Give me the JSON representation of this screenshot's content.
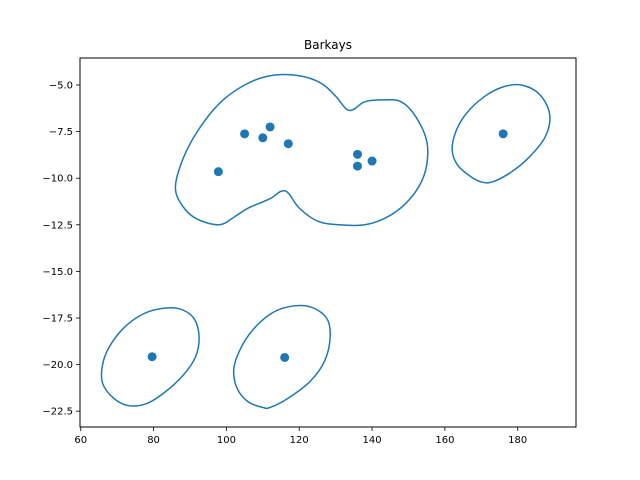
{
  "chart_data": {
    "type": "scatter",
    "title": "Barkays",
    "xlabel": "",
    "ylabel": "",
    "xlim": [
      59.8,
      196.0
    ],
    "ylim": [
      -23.35,
      -3.55
    ],
    "xticks": [
      60,
      80,
      100,
      120,
      140,
      160,
      180
    ],
    "yticks": [
      -5.0,
      -7.5,
      -10.0,
      -12.5,
      -15.0,
      -17.5,
      -20.0,
      -22.5
    ],
    "xtick_labels": [
      "60",
      "80",
      "100",
      "120",
      "140",
      "160",
      "180"
    ],
    "ytick_labels": [
      "−5.0",
      "−7.5",
      "−10.0",
      "−12.5",
      "−15.0",
      "−17.5",
      "−20.0",
      "−22.5"
    ],
    "grid": false,
    "color": "#1f77b4",
    "points": [
      {
        "x": 97.8,
        "y": -9.65
      },
      {
        "x": 105.0,
        "y": -7.62
      },
      {
        "x": 110.0,
        "y": -7.83
      },
      {
        "x": 112.0,
        "y": -7.25
      },
      {
        "x": 117.0,
        "y": -8.15
      },
      {
        "x": 136.0,
        "y": -8.72
      },
      {
        "x": 136.0,
        "y": -9.35
      },
      {
        "x": 140.0,
        "y": -9.08
      },
      {
        "x": 176.0,
        "y": -7.62
      },
      {
        "x": 79.6,
        "y": -19.58
      },
      {
        "x": 116.0,
        "y": -19.62
      }
    ],
    "contours": [
      [
        [
          98,
          -12.5
        ],
        [
          92,
          -12.2
        ],
        [
          88,
          -11.5
        ],
        [
          86,
          -10.5
        ],
        [
          88,
          -9.0
        ],
        [
          92,
          -7.5
        ],
        [
          98,
          -6.0
        ],
        [
          105,
          -5.0
        ],
        [
          112,
          -4.5
        ],
        [
          120,
          -4.5
        ],
        [
          126,
          -4.9
        ],
        [
          130,
          -5.6
        ],
        [
          133,
          -6.3
        ],
        [
          135,
          -6.3
        ],
        [
          138,
          -5.9
        ],
        [
          143,
          -5.8
        ],
        [
          148,
          -5.9
        ],
        [
          152,
          -6.7
        ],
        [
          155,
          -8.0
        ],
        [
          155,
          -9.3
        ],
        [
          153,
          -10.4
        ],
        [
          149,
          -11.4
        ],
        [
          144,
          -12.1
        ],
        [
          138,
          -12.5
        ],
        [
          131,
          -12.5
        ],
        [
          125,
          -12.3
        ],
        [
          120,
          -11.6
        ],
        [
          117,
          -10.8
        ],
        [
          115,
          -10.7
        ],
        [
          112,
          -11.1
        ],
        [
          106,
          -11.6
        ],
        [
          102,
          -12.1
        ],
        [
          98,
          -12.5
        ]
      ],
      [
        [
          170,
          -10.2
        ],
        [
          167,
          -9.9
        ],
        [
          163.5,
          -9.3
        ],
        [
          162,
          -8.5
        ],
        [
          163,
          -7.5
        ],
        [
          166,
          -6.5
        ],
        [
          171,
          -5.6
        ],
        [
          176,
          -5.1
        ],
        [
          181,
          -5.0
        ],
        [
          186,
          -5.5
        ],
        [
          188.8,
          -6.6
        ],
        [
          187.5,
          -7.8
        ],
        [
          183,
          -8.9
        ],
        [
          178,
          -9.7
        ],
        [
          173,
          -10.2
        ],
        [
          170,
          -10.2
        ]
      ],
      [
        [
          73,
          -22.2
        ],
        [
          69,
          -21.8
        ],
        [
          66,
          -21.0
        ],
        [
          66,
          -20.0
        ],
        [
          68,
          -19.0
        ],
        [
          72,
          -18.0
        ],
        [
          77,
          -17.3
        ],
        [
          82,
          -17.0
        ],
        [
          87,
          -17.0
        ],
        [
          91,
          -17.5
        ],
        [
          92.5,
          -18.5
        ],
        [
          91.5,
          -19.6
        ],
        [
          88,
          -20.6
        ],
        [
          83,
          -21.5
        ],
        [
          78,
          -22.1
        ],
        [
          73,
          -22.2
        ]
      ],
      [
        [
          110,
          -22.3
        ],
        [
          106,
          -22.0
        ],
        [
          103,
          -21.3
        ],
        [
          102,
          -20.3
        ],
        [
          103.5,
          -19.3
        ],
        [
          107,
          -18.2
        ],
        [
          112,
          -17.3
        ],
        [
          117,
          -16.9
        ],
        [
          123,
          -16.9
        ],
        [
          127.5,
          -17.5
        ],
        [
          128.5,
          -18.5
        ],
        [
          127,
          -19.8
        ],
        [
          123,
          -20.9
        ],
        [
          117,
          -21.8
        ],
        [
          112,
          -22.3
        ],
        [
          110,
          -22.3
        ]
      ]
    ]
  }
}
